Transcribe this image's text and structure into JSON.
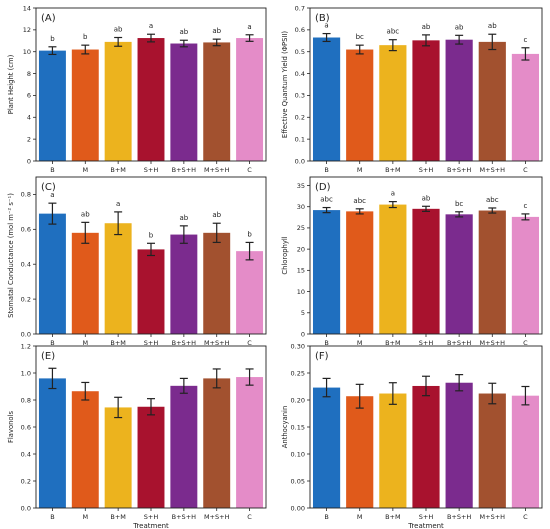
{
  "xlabel_shared": "Treatment",
  "colors": [
    "#1f6fbf",
    "#e05a1b",
    "#ecb31e",
    "#a8122e",
    "#7b2b8e",
    "#a2512f",
    "#e48cc8"
  ],
  "chart_data": [
    {
      "panel": "(A)",
      "type": "bar",
      "categories": [
        "B",
        "M",
        "B+M",
        "S+H",
        "B+S+H",
        "M+S+H",
        "C"
      ],
      "values": [
        10.1,
        10.2,
        10.9,
        11.25,
        10.75,
        10.85,
        11.25
      ],
      "errors": [
        0.35,
        0.4,
        0.4,
        0.35,
        0.3,
        0.3,
        0.3
      ],
      "letters": [
        "b",
        "b",
        "ab",
        "a",
        "ab",
        "ab",
        "a"
      ],
      "ylabel": "Plant Height (cm)",
      "xlabel": "",
      "ylim": [
        0,
        14
      ],
      "yticks": [
        "0",
        "2",
        "4",
        "6",
        "8",
        "10",
        "12",
        "14"
      ],
      "ytickvals": [
        0,
        2,
        4,
        6,
        8,
        10,
        12,
        14
      ]
    },
    {
      "panel": "(B)",
      "type": "bar",
      "categories": [
        "B",
        "M",
        "B+M",
        "S+H",
        "B+S+H",
        "M+S+H",
        "C"
      ],
      "values": [
        0.565,
        0.51,
        0.53,
        0.552,
        0.555,
        0.545,
        0.49
      ],
      "errors": [
        0.018,
        0.02,
        0.025,
        0.025,
        0.02,
        0.035,
        0.028
      ],
      "letters": [
        "a",
        "bc",
        "abc",
        "ab",
        "ab",
        "ab",
        "c"
      ],
      "ylabel": "Effective Quantum Yield (ΦPSII)",
      "xlabel": "",
      "ylim": [
        0,
        0.7
      ],
      "yticks": [
        "0.0",
        "0.1",
        "0.2",
        "0.3",
        "0.4",
        "0.5",
        "0.6",
        "0.7"
      ],
      "ytickvals": [
        0,
        0.1,
        0.2,
        0.3,
        0.4,
        0.5,
        0.6,
        0.7
      ]
    },
    {
      "panel": "(C)",
      "type": "bar",
      "categories": [
        "B",
        "M",
        "B+M",
        "S+H",
        "B+S+H",
        "M+S+H",
        "C"
      ],
      "values": [
        0.69,
        0.58,
        0.635,
        0.485,
        0.57,
        0.58,
        0.475
      ],
      "errors": [
        0.06,
        0.06,
        0.065,
        0.035,
        0.05,
        0.055,
        0.05
      ],
      "letters": [
        "a",
        "ab",
        "a",
        "b",
        "ab",
        "ab",
        "b"
      ],
      "ylabel": "Stomatal Conductance (mol m⁻² s⁻¹)",
      "xlabel": "",
      "ylim": [
        0,
        0.9
      ],
      "yticks": [
        "0.0",
        "0.2",
        "0.4",
        "0.6",
        "0.8"
      ],
      "ytickvals": [
        0,
        0.2,
        0.4,
        0.6,
        0.8
      ]
    },
    {
      "panel": "(D)",
      "type": "bar",
      "categories": [
        "B",
        "M",
        "B+M",
        "S+H",
        "B+S+H",
        "M+S+H",
        "C"
      ],
      "values": [
        29.2,
        28.9,
        30.5,
        29.5,
        28.2,
        29.1,
        27.6
      ],
      "errors": [
        0.6,
        0.6,
        0.7,
        0.6,
        0.6,
        0.6,
        0.7
      ],
      "letters": [
        "abc",
        "abc",
        "a",
        "ab",
        "bc",
        "abc",
        "c"
      ],
      "ylabel": "Chlorophyll",
      "xlabel": "",
      "ylim": [
        0,
        37
      ],
      "yticks": [
        "0",
        "5",
        "10",
        "15",
        "20",
        "25",
        "30",
        "35"
      ],
      "ytickvals": [
        0,
        5,
        10,
        15,
        20,
        25,
        30,
        35
      ]
    },
    {
      "panel": "(E)",
      "type": "bar",
      "categories": [
        "B",
        "M",
        "B+M",
        "S+H",
        "B+S+H",
        "M+S+H",
        "C"
      ],
      "values": [
        0.96,
        0.865,
        0.745,
        0.75,
        0.905,
        0.96,
        0.97
      ],
      "errors": [
        0.075,
        0.065,
        0.075,
        0.06,
        0.055,
        0.07,
        0.06
      ],
      "letters": [],
      "ylabel": "Flavonols",
      "xlabel": "Treatment",
      "ylim": [
        0,
        1.2
      ],
      "yticks": [
        "0.0",
        "0.2",
        "0.4",
        "0.6",
        "0.8",
        "1.0",
        "1.2"
      ],
      "ytickvals": [
        0,
        0.2,
        0.4,
        0.6,
        0.8,
        1.0,
        1.2
      ]
    },
    {
      "panel": "(F)",
      "type": "bar",
      "categories": [
        "B",
        "M",
        "B+M",
        "S+H",
        "B+S+H",
        "M+S+H",
        "C"
      ],
      "values": [
        0.223,
        0.207,
        0.212,
        0.226,
        0.232,
        0.212,
        0.208
      ],
      "errors": [
        0.017,
        0.022,
        0.02,
        0.018,
        0.015,
        0.019,
        0.017
      ],
      "letters": [],
      "ylabel": "Anthocyanin",
      "xlabel": "Treatment",
      "ylim": [
        0,
        0.3
      ],
      "yticks": [
        "0.00",
        "0.05",
        "0.10",
        "0.15",
        "0.20",
        "0.25",
        "0.30"
      ],
      "ytickvals": [
        0,
        0.05,
        0.1,
        0.15,
        0.2,
        0.25,
        0.3
      ]
    }
  ]
}
